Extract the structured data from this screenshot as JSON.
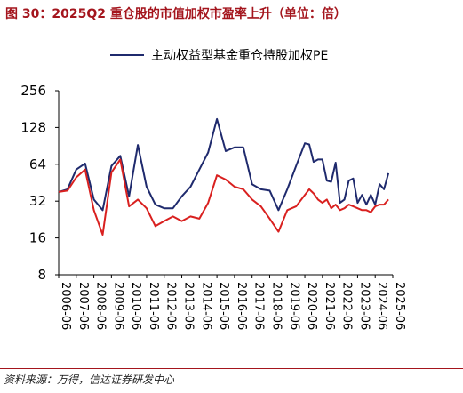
{
  "header": {
    "title": "图 30：2025Q2 重仓股的市值加权市盈率上升（单位：倍）"
  },
  "footer": {
    "source": "资料来源：万得，信达证券研发中心"
  },
  "colors": {
    "title": "#a4151d",
    "series_navy": "#1f2a6d",
    "series_red": "#d9201f"
  },
  "chart_data": {
    "type": "line",
    "title": "",
    "xlabel": "",
    "ylabel": "",
    "y_scale": "log2",
    "ylim": [
      8,
      256
    ],
    "y_ticks": [
      8,
      16,
      32,
      64,
      128,
      256
    ],
    "x_tick_labels": [
      "2006-06",
      "2007-06",
      "2008-06",
      "2009-06",
      "2010-06",
      "2011-06",
      "2012-06",
      "2013-06",
      "2014-06",
      "2015-06",
      "2016-06",
      "2017-06",
      "2018-06",
      "2019-06",
      "2020-06",
      "2021-06",
      "2022-06",
      "2023-06",
      "2024-06",
      "2025-06"
    ],
    "legend": {
      "placement": "top",
      "entries": [
        "主动权益型基金重仓持股加权PE"
      ]
    },
    "series": [
      {
        "name": "主动权益型基金重仓持股加权PE",
        "color": "#1f2a6d",
        "points": [
          [
            "2006-06",
            38
          ],
          [
            "2006-12",
            40
          ],
          [
            "2007-06",
            58
          ],
          [
            "2007-12",
            65
          ],
          [
            "2008-06",
            33
          ],
          [
            "2008-12",
            27
          ],
          [
            "2009-06",
            62
          ],
          [
            "2009-12",
            75
          ],
          [
            "2010-06",
            35
          ],
          [
            "2010-12",
            92
          ],
          [
            "2011-06",
            42
          ],
          [
            "2011-12",
            30
          ],
          [
            "2012-06",
            28
          ],
          [
            "2012-12",
            28
          ],
          [
            "2013-06",
            35
          ],
          [
            "2013-12",
            42
          ],
          [
            "2014-06",
            58
          ],
          [
            "2014-12",
            80
          ],
          [
            "2015-06",
            150
          ],
          [
            "2015-12",
            82
          ],
          [
            "2016-06",
            88
          ],
          [
            "2016-12",
            88
          ],
          [
            "2017-06",
            44
          ],
          [
            "2017-12",
            40
          ],
          [
            "2018-06",
            39
          ],
          [
            "2018-12",
            27
          ],
          [
            "2019-06",
            40
          ],
          [
            "2019-12",
            62
          ],
          [
            "2020-06",
            95
          ],
          [
            "2020-09",
            93
          ],
          [
            "2020-12",
            67
          ],
          [
            "2021-03",
            70
          ],
          [
            "2021-06",
            70
          ],
          [
            "2021-09",
            47
          ],
          [
            "2021-12",
            46
          ],
          [
            "2022-03",
            66
          ],
          [
            "2022-06",
            31
          ],
          [
            "2022-09",
            33
          ],
          [
            "2022-12",
            47
          ],
          [
            "2023-03",
            49
          ],
          [
            "2023-06",
            31
          ],
          [
            "2023-09",
            36
          ],
          [
            "2023-12",
            30
          ],
          [
            "2024-03",
            36
          ],
          [
            "2024-06",
            30
          ],
          [
            "2024-09",
            44
          ],
          [
            "2024-12",
            40
          ],
          [
            "2025-03",
            54
          ]
        ]
      },
      {
        "name": "",
        "color": "#d9201f",
        "points": [
          [
            "2006-06",
            38
          ],
          [
            "2006-12",
            39
          ],
          [
            "2007-06",
            50
          ],
          [
            "2007-12",
            58
          ],
          [
            "2008-06",
            27
          ],
          [
            "2008-12",
            17
          ],
          [
            "2009-06",
            55
          ],
          [
            "2009-12",
            70
          ],
          [
            "2010-06",
            29
          ],
          [
            "2010-12",
            33
          ],
          [
            "2011-06",
            28
          ],
          [
            "2011-12",
            20
          ],
          [
            "2012-06",
            22
          ],
          [
            "2012-12",
            24
          ],
          [
            "2013-06",
            22
          ],
          [
            "2013-12",
            24
          ],
          [
            "2014-06",
            23
          ],
          [
            "2014-12",
            31
          ],
          [
            "2015-06",
            52
          ],
          [
            "2015-12",
            48
          ],
          [
            "2016-06",
            42
          ],
          [
            "2016-12",
            40
          ],
          [
            "2017-06",
            33
          ],
          [
            "2017-12",
            29
          ],
          [
            "2018-06",
            23
          ],
          [
            "2018-12",
            18
          ],
          [
            "2019-06",
            27
          ],
          [
            "2019-12",
            29
          ],
          [
            "2020-06",
            36
          ],
          [
            "2020-09",
            40
          ],
          [
            "2020-12",
            37
          ],
          [
            "2021-03",
            33
          ],
          [
            "2021-06",
            31
          ],
          [
            "2021-09",
            33
          ],
          [
            "2021-12",
            28
          ],
          [
            "2022-03",
            30
          ],
          [
            "2022-06",
            27
          ],
          [
            "2022-09",
            28
          ],
          [
            "2022-12",
            30
          ],
          [
            "2023-03",
            29
          ],
          [
            "2023-06",
            28
          ],
          [
            "2023-09",
            27
          ],
          [
            "2023-12",
            27
          ],
          [
            "2024-03",
            26
          ],
          [
            "2024-06",
            29
          ],
          [
            "2024-09",
            30
          ],
          [
            "2024-12",
            30
          ],
          [
            "2025-03",
            33
          ]
        ]
      }
    ]
  }
}
